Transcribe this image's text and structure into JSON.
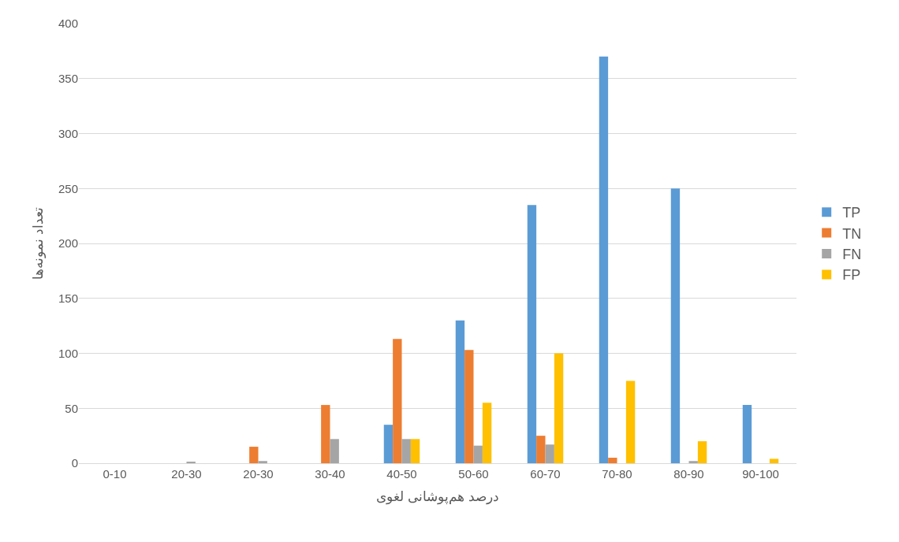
{
  "chart_data": {
    "type": "bar",
    "xlabel": "درصد هم‌پوشانی لغوی",
    "ylabel": "تعداد نمونه‌ها",
    "categories": [
      "0-10",
      "20-30",
      "20-30",
      "30-40",
      "40-50",
      "50-60",
      "60-70",
      "70-80",
      "80-90",
      "90-100"
    ],
    "series": [
      {
        "name": "TP",
        "color": "#5b9bd5",
        "values": [
          0,
          0,
          0,
          0,
          35,
          130,
          235,
          370,
          250,
          53
        ]
      },
      {
        "name": "TN",
        "color": "#ed7d31",
        "values": [
          0,
          0,
          15,
          53,
          113,
          103,
          25,
          5,
          0,
          0
        ]
      },
      {
        "name": "FN",
        "color": "#a5a5a5",
        "values": [
          0,
          1,
          2,
          22,
          22,
          16,
          17,
          0,
          2,
          0
        ]
      },
      {
        "name": "FP",
        "color": "#ffc000",
        "values": [
          0,
          0,
          0,
          0,
          22,
          55,
          100,
          75,
          20,
          4
        ]
      }
    ],
    "ylim": [
      0,
      400
    ],
    "yticks": [
      0,
      50,
      100,
      150,
      200,
      250,
      300,
      350,
      400
    ],
    "grid": "y",
    "legend": "right"
  }
}
